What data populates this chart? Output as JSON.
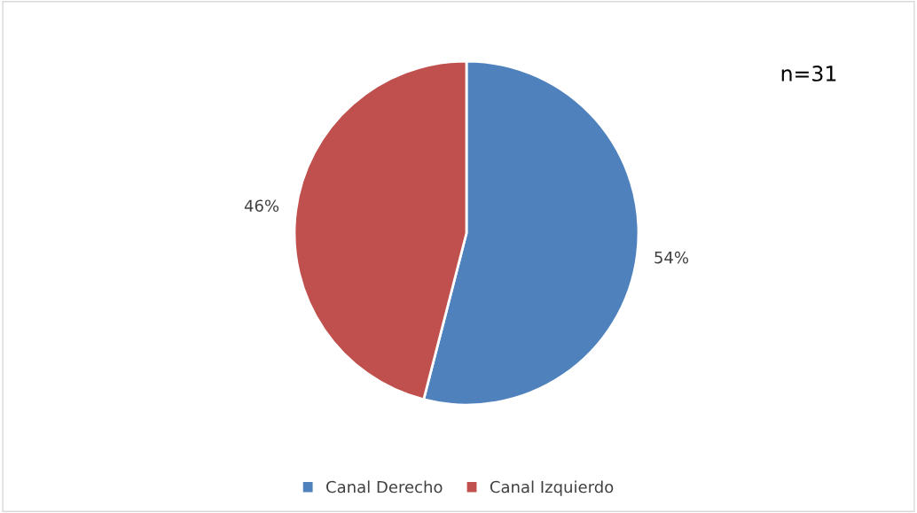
{
  "chart_data": {
    "type": "pie",
    "categories": [
      "Canal Derecho",
      "Canal Izquierdo"
    ],
    "values": [
      54,
      46
    ],
    "colors": [
      "#4f81bd",
      "#c0504d"
    ],
    "value_labels": [
      "54%",
      "46%"
    ],
    "annotations": [
      "n=31"
    ],
    "legend": "bottom"
  }
}
